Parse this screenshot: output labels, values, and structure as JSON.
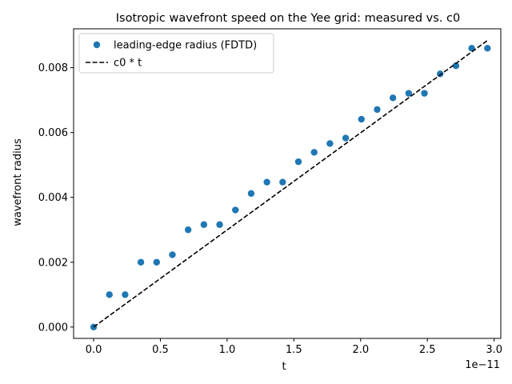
{
  "chart_data": {
    "type": "scatter",
    "title": "Isotropic wavefront speed on the Yee grid: measured vs. c0",
    "xlabel": "t",
    "ylabel": "wavefront radius",
    "x_offset_text": "1e−11",
    "xlim": [
      -0.15,
      3.05
    ],
    "ylim": [
      -0.00035,
      0.0092
    ],
    "xticks": [
      0.0,
      0.5,
      1.0,
      1.5,
      2.0,
      2.5,
      3.0
    ],
    "xtick_labels": [
      "0.0",
      "0.5",
      "1.0",
      "1.5",
      "2.0",
      "2.5",
      "3.0"
    ],
    "yticks": [
      0.0,
      0.002,
      0.004,
      0.006,
      0.008
    ],
    "ytick_labels": [
      "0.000",
      "0.002",
      "0.004",
      "0.006",
      "0.008"
    ],
    "grid": false,
    "legend_position": "upper-left",
    "series": [
      {
        "name": "leading-edge radius (FDTD)",
        "type": "scatter",
        "color": "#1f77b4",
        "x": [
          0.0,
          0.118,
          0.236,
          0.354,
          0.472,
          0.59,
          0.708,
          0.826,
          0.944,
          1.062,
          1.18,
          1.298,
          1.416,
          1.534,
          1.652,
          1.77,
          1.888,
          2.006,
          2.124,
          2.242,
          2.36,
          2.478,
          2.596,
          2.714,
          2.832,
          2.95
        ],
        "y": [
          0.0,
          0.001,
          0.001,
          0.002,
          0.002,
          0.00223,
          0.003,
          0.00316,
          0.00316,
          0.00361,
          0.00412,
          0.00447,
          0.00447,
          0.0051,
          0.00539,
          0.00566,
          0.00583,
          0.00641,
          0.00671,
          0.00707,
          0.00721,
          0.00721,
          0.00781,
          0.00806,
          0.0086,
          0.0086
        ]
      },
      {
        "name": "c0 * t",
        "type": "line",
        "style": "dashed",
        "color": "#000000",
        "x": [
          0.0,
          2.95
        ],
        "y": [
          0.0,
          0.00884
        ]
      }
    ]
  }
}
